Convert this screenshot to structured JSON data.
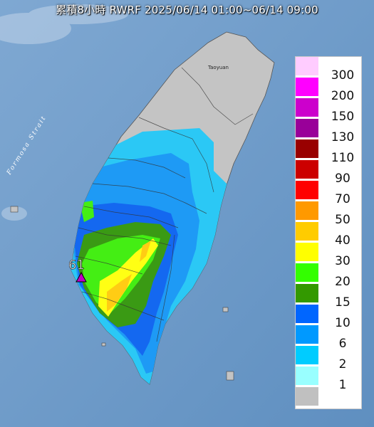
{
  "title": "累積8小時 RWRF 2025/06/14 01:00~06/14 09:00",
  "map_labels": {
    "strait": "Formosa Strait",
    "city": "Taoyuan"
  },
  "max_marker": {
    "value": "61",
    "color": "#c000c0"
  },
  "legend": [
    {
      "label": "300",
      "color": "#ffccff"
    },
    {
      "label": "200",
      "color": "#ff00ff"
    },
    {
      "label": "150",
      "color": "#cc00cc"
    },
    {
      "label": "130",
      "color": "#990099"
    },
    {
      "label": "110",
      "color": "#990000"
    },
    {
      "label": "90",
      "color": "#cc0000"
    },
    {
      "label": "70",
      "color": "#ff0000"
    },
    {
      "label": "50",
      "color": "#ff9900"
    },
    {
      "label": "40",
      "color": "#ffcc00"
    },
    {
      "label": "30",
      "color": "#ffff00"
    },
    {
      "label": "20",
      "color": "#33ff00"
    },
    {
      "label": "15",
      "color": "#339900"
    },
    {
      "label": "10",
      "color": "#0066ff"
    },
    {
      "label": "6",
      "color": "#0099ff"
    },
    {
      "label": "2",
      "color": "#00ccff"
    },
    {
      "label": "1",
      "color": "#99ffff"
    },
    {
      "label": "",
      "color": "#c0c0c0"
    }
  ]
}
